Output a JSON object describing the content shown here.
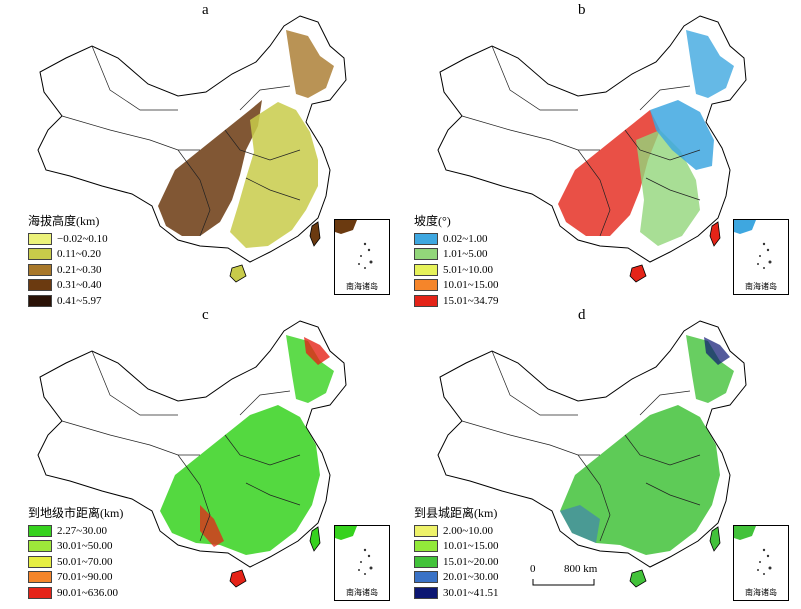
{
  "panels": [
    {
      "label": "a",
      "legend": {
        "title": "海拔高度(km)",
        "items": [
          {
            "label": "−0.02~0.10",
            "color": "#ecf27a"
          },
          {
            "label": "0.11~0.20",
            "color": "#c8cb4a"
          },
          {
            "label": "0.21~0.30",
            "color": "#a8782a"
          },
          {
            "label": "0.31~0.40",
            "color": "#6b3a10"
          },
          {
            "label": "0.41~5.97",
            "color": "#2a1206"
          }
        ]
      },
      "inset_label": "南海诸岛"
    },
    {
      "label": "b",
      "legend": {
        "title": "坡度(°)",
        "items": [
          {
            "label": "0.02~1.00",
            "color": "#3ea7e0"
          },
          {
            "label": "1.01~5.00",
            "color": "#92d67a"
          },
          {
            "label": "5.01~10.00",
            "color": "#e6f25a"
          },
          {
            "label": "10.01~15.00",
            "color": "#f5852a"
          },
          {
            "label": "15.01~34.79",
            "color": "#e42418"
          }
        ]
      },
      "inset_label": "南海诸岛"
    },
    {
      "label": "c",
      "legend": {
        "title": "到地级市距离(km)",
        "items": [
          {
            "label": "2.27~30.00",
            "color": "#36d21e"
          },
          {
            "label": "30.01~50.00",
            "color": "#9ee83a"
          },
          {
            "label": "50.01~70.00",
            "color": "#e6ee42"
          },
          {
            "label": "70.01~90.00",
            "color": "#f4852a"
          },
          {
            "label": "90.01~636.00",
            "color": "#e52318"
          }
        ]
      },
      "inset_label": "南海诸岛"
    },
    {
      "label": "d",
      "legend": {
        "title": "到县城距离(km)",
        "items": [
          {
            "label": "2.00~10.00",
            "color": "#eef26a"
          },
          {
            "label": "10.01~15.00",
            "color": "#92ea3a"
          },
          {
            "label": "15.01~20.00",
            "color": "#42c23a"
          },
          {
            "label": "20.01~30.00",
            "color": "#3a72c6"
          },
          {
            "label": "30.01~41.51",
            "color": "#0c1672"
          }
        ]
      },
      "inset_label": "南海诸岛",
      "scale_bar": {
        "zero": "0",
        "distance": "800 km"
      }
    }
  ]
}
